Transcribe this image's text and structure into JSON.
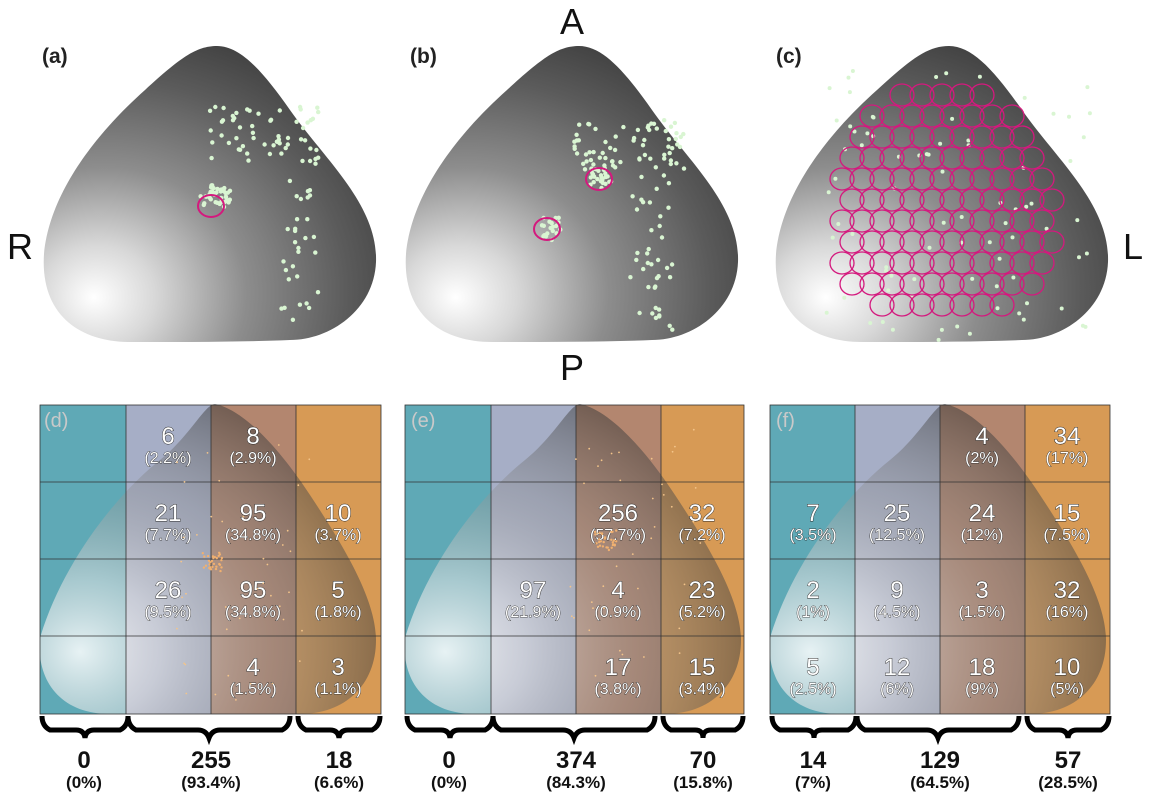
{
  "directions": {
    "anterior": "A",
    "posterior": "P",
    "right": "R",
    "left": "L"
  },
  "colors": {
    "region_left": "#5fa9b6",
    "region_mid_left": "#a6aec6",
    "region_mid_right": "#b3866f",
    "region_right": "#d79a55",
    "points": "#d9f5d2",
    "roi_circles": "#d4197e"
  },
  "top_panels": [
    {
      "label": "(a)",
      "roi_count_visible": 1
    },
    {
      "label": "(b)",
      "roi_count_visible": 2
    },
    {
      "label": "(c)",
      "roi_count_visible": "grid"
    }
  ],
  "bottom_panels": [
    {
      "label": "(d)",
      "cells": [
        {
          "num": "6",
          "pct": "(2.2%)"
        },
        {
          "num": "8",
          "pct": "(2.9%)"
        },
        {
          "num": "21",
          "pct": "(7.7%)"
        },
        {
          "num": "95",
          "pct": "(34.8%)"
        },
        {
          "num": "10",
          "pct": "(3.7%)"
        },
        {
          "num": "26",
          "pct": "(9.5%)"
        },
        {
          "num": "95",
          "pct": "(34.8%)"
        },
        {
          "num": "5",
          "pct": "(1.8%)"
        },
        {
          "num": "4",
          "pct": "(1.5%)"
        },
        {
          "num": "3",
          "pct": "(1.1%)"
        }
      ],
      "summary": [
        {
          "num": "0",
          "pct": "(0%)"
        },
        {
          "num": "255",
          "pct": "(93.4%)"
        },
        {
          "num": "18",
          "pct": "(6.6%)"
        }
      ]
    },
    {
      "label": "(e)",
      "cells": [
        {
          "num": "256",
          "pct": "(57.7%)"
        },
        {
          "num": "32",
          "pct": "(7.2%)"
        },
        {
          "num": "97",
          "pct": "(21.9%)"
        },
        {
          "num": "4",
          "pct": "(0.9%)"
        },
        {
          "num": "23",
          "pct": "(5.2%)"
        },
        {
          "num": "17",
          "pct": "(3.8%)"
        },
        {
          "num": "15",
          "pct": "(3.4%)"
        }
      ],
      "summary": [
        {
          "num": "0",
          "pct": "(0%)"
        },
        {
          "num": "374",
          "pct": "(84.3%)"
        },
        {
          "num": "70",
          "pct": "(15.8%)"
        }
      ]
    },
    {
      "label": "(f)",
      "cells": [
        {
          "num": "4",
          "pct": "(2%)"
        },
        {
          "num": "34",
          "pct": "(17%)"
        },
        {
          "num": "7",
          "pct": "(3.5%)"
        },
        {
          "num": "25",
          "pct": "(12.5%)"
        },
        {
          "num": "24",
          "pct": "(12%)"
        },
        {
          "num": "15",
          "pct": "(7.5%)"
        },
        {
          "num": "2",
          "pct": "(1%)"
        },
        {
          "num": "9",
          "pct": "(4.5%)"
        },
        {
          "num": "3",
          "pct": "(1.5%)"
        },
        {
          "num": "32",
          "pct": "(16%)"
        },
        {
          "num": "5",
          "pct": "(2.5%)"
        },
        {
          "num": "12",
          "pct": "(6%)"
        },
        {
          "num": "18",
          "pct": "(9%)"
        },
        {
          "num": "10",
          "pct": "(5%)"
        }
      ],
      "summary": [
        {
          "num": "14",
          "pct": "(7%)"
        },
        {
          "num": "129",
          "pct": "(64.5%)"
        },
        {
          "num": "57",
          "pct": "(28.5%)"
        }
      ]
    }
  ]
}
